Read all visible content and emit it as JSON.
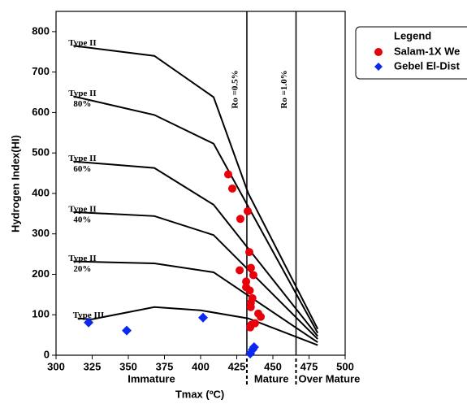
{
  "chart_data": {
    "type": "scatter",
    "xlabel": "Tmax (ºC)",
    "ylabel": "Hydrogen Index(HI)",
    "xlim": [
      300,
      500
    ],
    "ylim": [
      0,
      850
    ],
    "xticks": [
      300,
      325,
      350,
      375,
      400,
      425,
      450,
      475,
      500
    ],
    "yticks": [
      0,
      100,
      200,
      300,
      400,
      500,
      600,
      700,
      800
    ],
    "ro_lines": [
      {
        "x": 432,
        "label": "Ro =0.5%"
      },
      {
        "x": 466,
        "label": "Ro =1.0%"
      }
    ],
    "zones": [
      "Immature",
      "Mature",
      "Over Mature"
    ],
    "curves": [
      {
        "label": "Type II",
        "x": [
          312,
          368,
          409,
          433,
          481
        ],
        "y": [
          765,
          740,
          638,
          400,
          65
        ]
      },
      {
        "label": "Type II",
        "sublabel": "80%",
        "x": [
          312,
          368,
          409,
          481
        ],
        "y": [
          640,
          594,
          523,
          55
        ]
      },
      {
        "label": "Type II",
        "sublabel": "60%",
        "x": [
          312,
          368,
          409,
          481
        ],
        "y": [
          479,
          463,
          372,
          47
        ]
      },
      {
        "label": "Type II",
        "sublabel": "40%",
        "x": [
          312,
          368,
          409,
          481
        ],
        "y": [
          354,
          344,
          297,
          40
        ]
      },
      {
        "label": "Type II",
        "sublabel": "20%",
        "x": [
          312,
          368,
          409,
          481
        ],
        "y": [
          232,
          227,
          205,
          32
        ]
      },
      {
        "label": "Type III",
        "x": [
          315,
          325,
          368,
          400,
          433,
          481
        ],
        "y": [
          91,
          89,
          119,
          111,
          91,
          25
        ]
      }
    ],
    "legend_title": "Legend",
    "series": [
      {
        "name": "Salam-1X We",
        "color": "#e8000b",
        "marker": "circle",
        "x": [
          419.1,
          421.9,
          427.5,
          432.6,
          433.7,
          427,
          431.5,
          431.5,
          434.8,
          436.5,
          434,
          435.8,
          434.7,
          434.7,
          439.9,
          441.6,
          437.6,
          434.3,
          435
        ],
        "y": [
          447,
          412,
          337,
          356,
          255,
          210,
          182,
          168,
          216,
          198,
          160,
          141,
          129,
          119,
          103,
          95,
          79,
          69,
          75
        ]
      },
      {
        "name": "Gebel El-Dist",
        "color": "#0a28f0",
        "marker": "diamond",
        "x": [
          322.5,
          348.9,
          401.7,
          437,
          434.3,
          436
        ],
        "y": [
          81,
          61,
          93,
          20,
          4,
          14
        ]
      }
    ]
  }
}
